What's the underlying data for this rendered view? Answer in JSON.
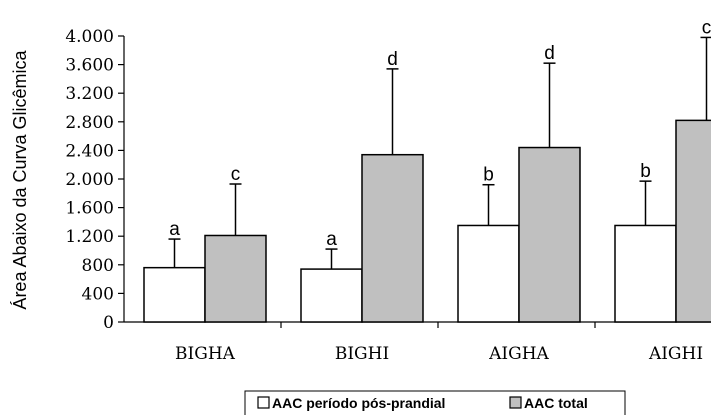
{
  "chart_data": {
    "type": "bar",
    "title": "",
    "xlabel": "",
    "ylabel": "Área Abaixo da Curva Glicêmica",
    "ylim": [
      0,
      4000
    ],
    "yticks": [
      0,
      400,
      800,
      1200,
      1600,
      2000,
      2400,
      2800,
      3200,
      3600,
      4000
    ],
    "ytick_labels": [
      "0",
      "400",
      "800",
      "1.200",
      "1.600",
      "2.000",
      "2.400",
      "2.800",
      "3.200",
      "3.600",
      "4.000"
    ],
    "categories": [
      "BIGHA",
      "BIGHI",
      "AIGHA",
      "AIGHI"
    ],
    "series": [
      {
        "name": "AAC período pós-prandial",
        "color": "#ffffff",
        "values": [
          760,
          740,
          1350,
          1350
        ],
        "error": [
          400,
          280,
          570,
          620
        ],
        "letters": [
          "a",
          "a",
          "b",
          "b"
        ]
      },
      {
        "name": "AAC total",
        "color": "#c0c0c0",
        "values": [
          1210,
          2340,
          2440,
          2820
        ],
        "error": [
          720,
          1200,
          1180,
          1160
        ],
        "letters": [
          "c",
          "d",
          "d",
          "c"
        ]
      }
    ],
    "grid": false,
    "legend_position": "bottom"
  }
}
